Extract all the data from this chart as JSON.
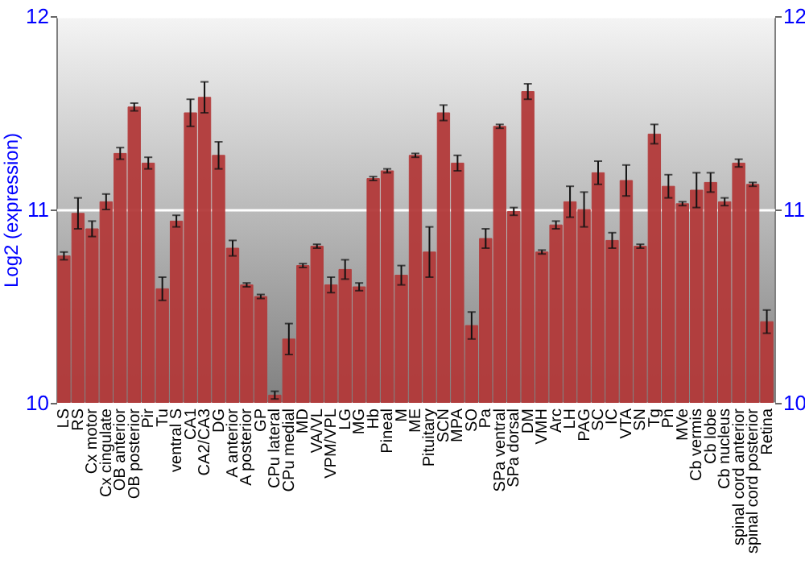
{
  "chart_data": {
    "type": "bar",
    "ylabel": "Log2 (expression)",
    "categories": [
      "LS",
      "RS",
      "Cx motor",
      "Cx cingulate",
      "OB anterior",
      "OB posterior",
      "Pir",
      "Tu",
      "ventral S",
      "CA1",
      "CA2/CA3",
      "DG",
      "A anterior",
      "A posterior",
      "GP",
      "CPu lateral",
      "CPu medial",
      "MD",
      "VA/VL",
      "VPM/VPL",
      "LG",
      "MG",
      "Hb",
      "Pineal",
      "M",
      "ME",
      "Pituitary",
      "SCN",
      "MPA",
      "SO",
      "Pa",
      "SPa ventral",
      "SPa dorsal",
      "DM",
      "VMH",
      "Arc",
      "LH",
      "PAG",
      "SC",
      "IC",
      "VTA",
      "SN",
      "Tg",
      "Pn",
      "MVe",
      "Cb vermis",
      "Cb lobe",
      "Cb nucleus",
      "spinal cord anterior",
      "spinal cord posterior",
      "Retina"
    ],
    "values": [
      10.76,
      10.98,
      10.9,
      11.04,
      11.29,
      11.53,
      11.24,
      10.59,
      10.94,
      11.5,
      11.58,
      11.28,
      10.8,
      10.61,
      10.55,
      10.04,
      10.33,
      10.71,
      10.81,
      10.61,
      10.69,
      10.6,
      11.16,
      11.2,
      10.66,
      11.28,
      10.78,
      11.5,
      11.24,
      10.4,
      10.85,
      11.43,
      10.99,
      11.61,
      10.78,
      10.92,
      11.04,
      11.0,
      11.19,
      10.84,
      11.15,
      10.81,
      11.39,
      11.12,
      11.03,
      11.1,
      11.14,
      11.04,
      11.24,
      11.13,
      10.42
    ],
    "errors": [
      0.02,
      0.08,
      0.04,
      0.04,
      0.03,
      0.02,
      0.03,
      0.06,
      0.03,
      0.07,
      0.08,
      0.07,
      0.04,
      0.01,
      0.01,
      0.02,
      0.08,
      0.01,
      0.01,
      0.04,
      0.05,
      0.02,
      0.01,
      0.01,
      0.05,
      0.01,
      0.13,
      0.04,
      0.04,
      0.07,
      0.05,
      0.01,
      0.02,
      0.04,
      0.01,
      0.02,
      0.08,
      0.09,
      0.06,
      0.04,
      0.08,
      0.01,
      0.05,
      0.06,
      0.01,
      0.09,
      0.05,
      0.02,
      0.02,
      0.01,
      0.06
    ],
    "color": "#b33a3a",
    "ylim": [
      10,
      12
    ],
    "yticks": [
      10,
      11,
      12
    ],
    "y2lim": [
      10,
      12
    ],
    "y2ticks": [
      10,
      11,
      12
    ],
    "grid": "y"
  }
}
